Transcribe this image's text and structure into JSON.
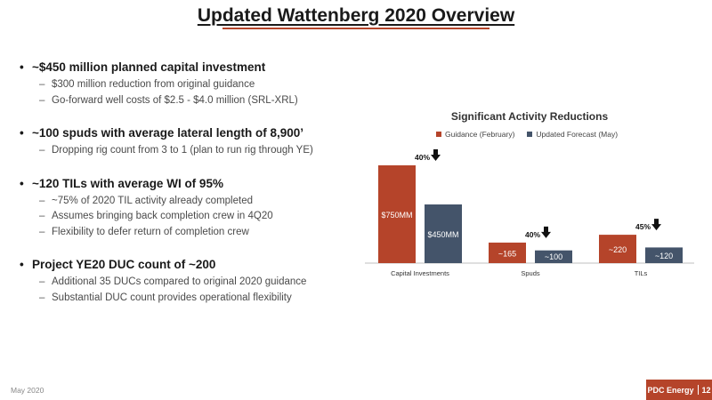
{
  "slide": {
    "title": "Updated Wattenberg 2020 Overview",
    "date": "May 2020",
    "company": "PDC Energy",
    "page_number": "12",
    "accent_color": "#b5442a"
  },
  "bullets": [
    {
      "text": "~$450 million planned capital investment",
      "subs": [
        "$300 million reduction from original guidance",
        "Go-forward well costs of $2.5 - $4.0 million (SRL-XRL)"
      ]
    },
    {
      "text": "~100 spuds with average lateral length of 8,900’",
      "subs": [
        "Dropping rig count from 3 to 1 (plan to run rig through YE)"
      ]
    },
    {
      "text": "~120 TILs with average WI of 95%",
      "subs": [
        "~75% of 2020 TIL activity already completed",
        "Assumes bringing back completion crew in 4Q20",
        "Flexibility to defer return of completion crew"
      ]
    },
    {
      "text": "Project YE20 DUC count of ~200",
      "subs": [
        "Additional 35 DUCs compared to original 2020 guidance",
        "Substantial DUC count provides operational flexibility"
      ]
    }
  ],
  "chart_data": {
    "type": "bar",
    "title": "Significant Activity Reductions",
    "categories": [
      "Capital Investments",
      "Spuds",
      "TILs"
    ],
    "series": [
      {
        "name": "Guidance (February)",
        "color": "#b5442a",
        "values": [
          1.0,
          0.21,
          0.29
        ],
        "labels": [
          "$750MM",
          "~165",
          "~220"
        ]
      },
      {
        "name": "Updated Forecast (May)",
        "color": "#44546a",
        "values": [
          0.6,
          0.13,
          0.16
        ],
        "labels": [
          "$450MM",
          "~100",
          "~120"
        ]
      }
    ],
    "reductions": [
      "40%",
      "40%",
      "45%"
    ],
    "legend_position": "top",
    "grid": false,
    "ylim": [
      0,
      1.0
    ]
  }
}
